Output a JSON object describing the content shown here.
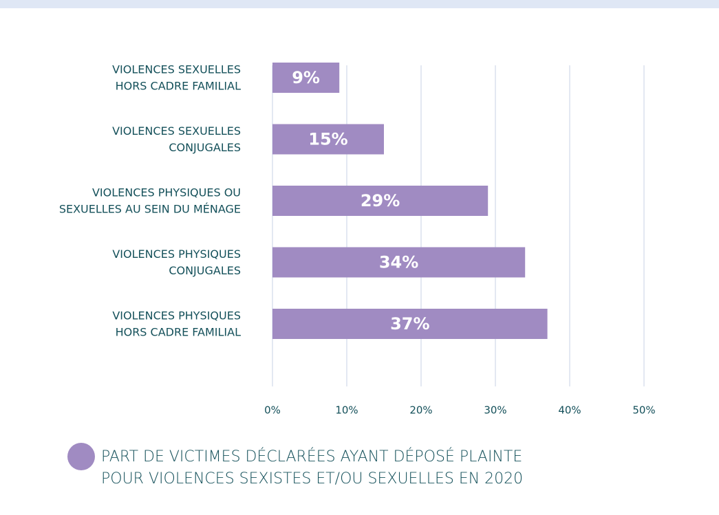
{
  "chart_data": {
    "type": "bar",
    "orientation": "horizontal",
    "categories": [
      [
        "VIOLENCES SEXUELLES",
        "HORS CADRE FAMILIAL"
      ],
      [
        "VIOLENCES SEXUELLES",
        "CONJUGALES"
      ],
      [
        "VIOLENCES PHYSIQUES OU",
        "SEXUELLES AU SEIN DU MÉNAGE"
      ],
      [
        "VIOLENCES PHYSIQUES",
        "CONJUGALES"
      ],
      [
        "VIOLENCES PHYSIQUES",
        "HORS CADRE FAMILIAL"
      ]
    ],
    "series": [
      {
        "name": [
          "PART DE VICTIMES DÉCLARÉES AYANT DÉPOSÉ PLAINTE",
          "POUR VIOLENCES SEXISTES ET/OU SEXUELLES EN 2020"
        ],
        "color": "#a08bc2",
        "values": [
          9,
          15,
          29,
          34,
          37
        ],
        "value_labels": [
          "9%",
          "15%",
          "29%",
          "34%",
          "37%"
        ]
      }
    ],
    "xlim": [
      0,
      50
    ],
    "xticks": [
      {
        "value": 0,
        "label": "0%"
      },
      {
        "value": 10,
        "label": "10%"
      },
      {
        "value": 20,
        "label": "20%"
      },
      {
        "value": 30,
        "label": "30%"
      },
      {
        "value": 40,
        "label": "40%"
      },
      {
        "value": 50,
        "label": "50%"
      }
    ],
    "grid": true
  }
}
